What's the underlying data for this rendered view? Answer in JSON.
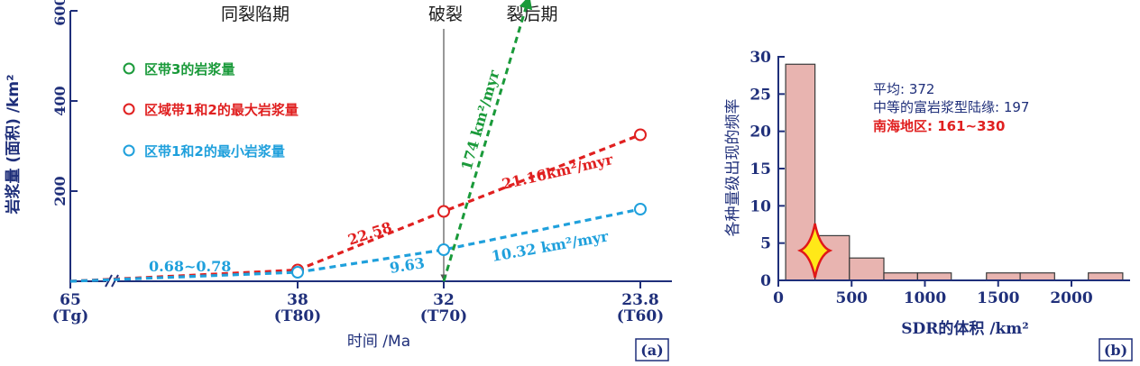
{
  "chart_data": [
    {
      "type": "line",
      "panel_label": "(a)",
      "xlabel": "时间 /Ma",
      "ylabel": "岩浆量 (面积) /km²",
      "ylim": [
        0,
        600
      ],
      "yticks": [
        "200",
        "400",
        "600"
      ],
      "xticks": [
        {
          "age": 65,
          "label": "65",
          "sub": "(Tg)"
        },
        {
          "age": 38,
          "label": "38",
          "sub": "(T80)"
        },
        {
          "age": 32,
          "label": "32",
          "sub": "(T70)"
        },
        {
          "age": 23.8,
          "label": "23.8",
          "sub": "(T60)"
        }
      ],
      "phase_labels": [
        "同裂陷期",
        "破裂",
        "裂后期"
      ],
      "legend": [
        {
          "label": "区带3的岩浆量",
          "color": "#1a9a3a"
        },
        {
          "label": "区域带1和2的最大岩浆量",
          "color": "#e02020"
        },
        {
          "label": "区带1和2的最小岩浆量",
          "color": "#1fa0dc"
        }
      ],
      "series": [
        {
          "name": "区域带1和2的最大岩浆量",
          "color": "#e02020",
          "x": [
            65,
            38,
            32,
            23.8
          ],
          "y": [
            0,
            25,
            155,
            325
          ]
        },
        {
          "name": "区带1和2的最小岩浆量",
          "color": "#1fa0dc",
          "x": [
            65,
            38,
            32,
            23.8
          ],
          "y": [
            0,
            20,
            70,
            160
          ]
        },
        {
          "name": "区带3的岩浆量",
          "color": "#1a9a3a",
          "x": [
            32,
            28.5
          ],
          "y": [
            0,
            620
          ]
        }
      ],
      "annotations": {
        "early_rate": "0.68~0.78",
        "max_rate_1": "22.58",
        "max_rate_2": "21.16km²/myr",
        "min_rate_1": "9.63",
        "min_rate_2": "10.32 km²/myr",
        "zone3_rate": "174 km²/myr"
      }
    },
    {
      "type": "bar",
      "panel_label": "(b)",
      "xlabel": "SDR的体积 /km²",
      "ylabel": "各种量级出现的频率",
      "xlim": [
        0,
        2400
      ],
      "ylim": [
        0,
        30
      ],
      "xticks": [
        "0",
        "500",
        "1000",
        "1500",
        "2000"
      ],
      "yticks": [
        "0",
        "5",
        "10",
        "15",
        "20",
        "25",
        "30"
      ],
      "bin_edges": [
        50,
        250,
        485,
        720,
        950,
        1180,
        1420,
        1650,
        1885,
        2115,
        2350
      ],
      "values": [
        29,
        6,
        3,
        1,
        1,
        0,
        1,
        1,
        0,
        1
      ],
      "bar_color": "#e8b4b0",
      "marker_x": 250,
      "marker_y": 4,
      "stats": {
        "mean": "平均: 372",
        "medium": "中等的富岩浆型陆缘: 197",
        "scs": "南海地区: 161~330"
      }
    }
  ]
}
